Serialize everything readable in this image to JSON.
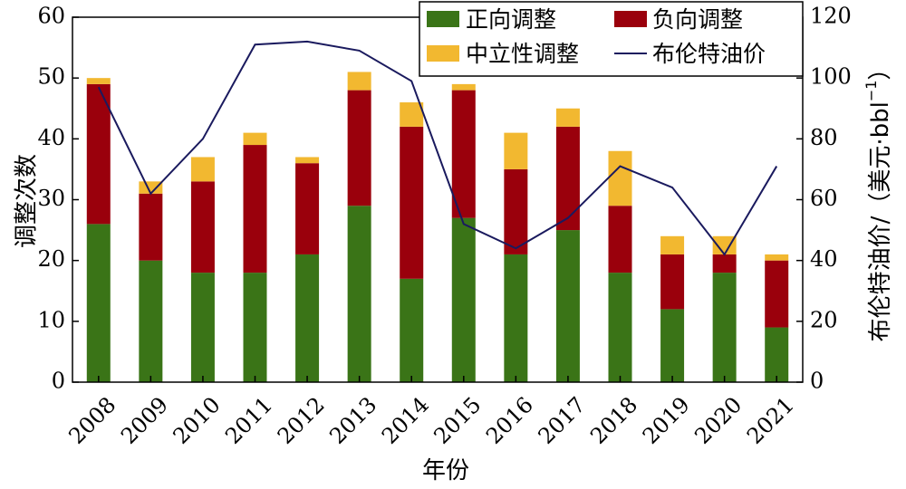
{
  "chart_data": {
    "type": "bar",
    "stacked": true,
    "categories": [
      "2008",
      "2009",
      "2010",
      "2011",
      "2012",
      "2013",
      "2014",
      "2015",
      "2016",
      "2017",
      "2018",
      "2019",
      "2020",
      "2021"
    ],
    "series": [
      {
        "name": "正向调整",
        "color": "#3a7417",
        "values": [
          26,
          20,
          18,
          18,
          21,
          29,
          17,
          27,
          21,
          25,
          18,
          12,
          18,
          9
        ]
      },
      {
        "name": "负向调整",
        "color": "#9a000c",
        "values": [
          23,
          11,
          15,
          21,
          15,
          19,
          25,
          21,
          14,
          17,
          11,
          9,
          3,
          11
        ]
      },
      {
        "name": "中立性调整",
        "color": "#f2b830",
        "values": [
          1,
          2,
          4,
          2,
          1,
          3,
          4,
          1,
          6,
          3,
          9,
          3,
          3,
          1
        ]
      }
    ],
    "line_series": {
      "name": "布伦特油价",
      "color": "#1a1a5e",
      "axis": "right",
      "values": [
        97,
        62,
        80,
        111,
        112,
        109,
        99,
        52,
        44,
        54,
        71,
        64,
        42,
        71
      ]
    },
    "ylabel": "调整次数",
    "ylabel_right_main": "布伦特油价/（美元·bbl",
    "ylabel_right_sup": "−1",
    "ylabel_right_close": "）",
    "xlabel": "年份",
    "ylim": [
      0,
      60
    ],
    "yticks": [
      "0",
      "10",
      "20",
      "30",
      "40",
      "50",
      "60"
    ],
    "ylim_right": [
      0,
      120
    ],
    "yticks_right": [
      "0",
      "20",
      "40",
      "60",
      "80",
      "100",
      "120"
    ],
    "legend": [
      "正向调整",
      "负向调整",
      "中立性调整",
      "布伦特油价"
    ],
    "legend_position": "top-right"
  }
}
